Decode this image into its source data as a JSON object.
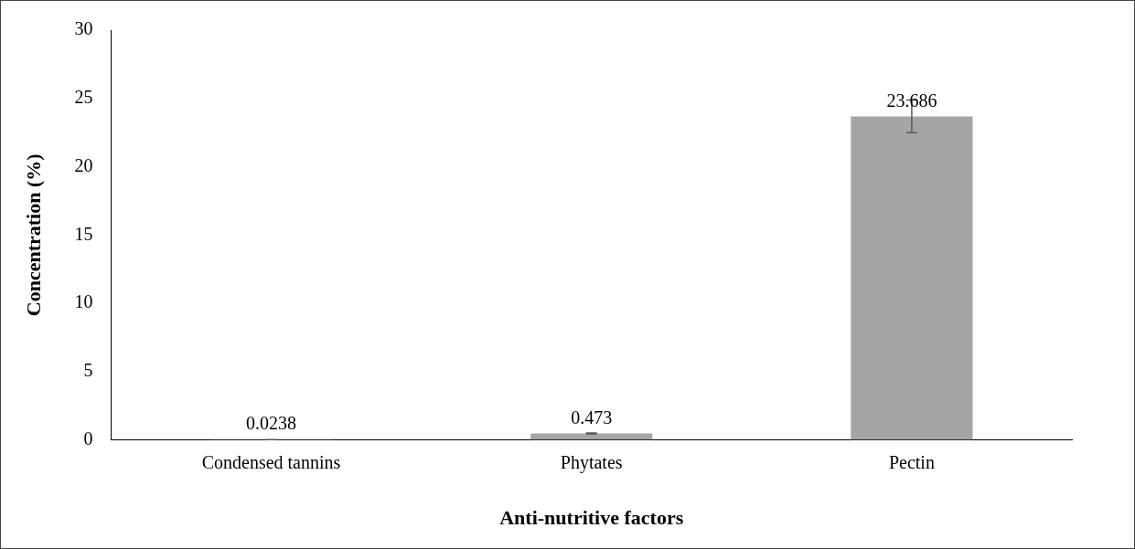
{
  "chart_data": {
    "type": "bar",
    "xlabel": "Anti-nutritive factors",
    "ylabel": "Concentration (%)",
    "categories": [
      "Condensed tannins",
      "Phytates",
      "Pectin"
    ],
    "values": [
      0.0238,
      0.473,
      23.686
    ],
    "color": "#a5a5a5",
    "errors": [
      0.002,
      0.03,
      1.2
    ],
    "ylim": [
      0,
      30
    ],
    "yticks": [
      0,
      5,
      10,
      15,
      20,
      25,
      30
    ],
    "grid": false,
    "legend": false,
    "data_labels": true
  }
}
